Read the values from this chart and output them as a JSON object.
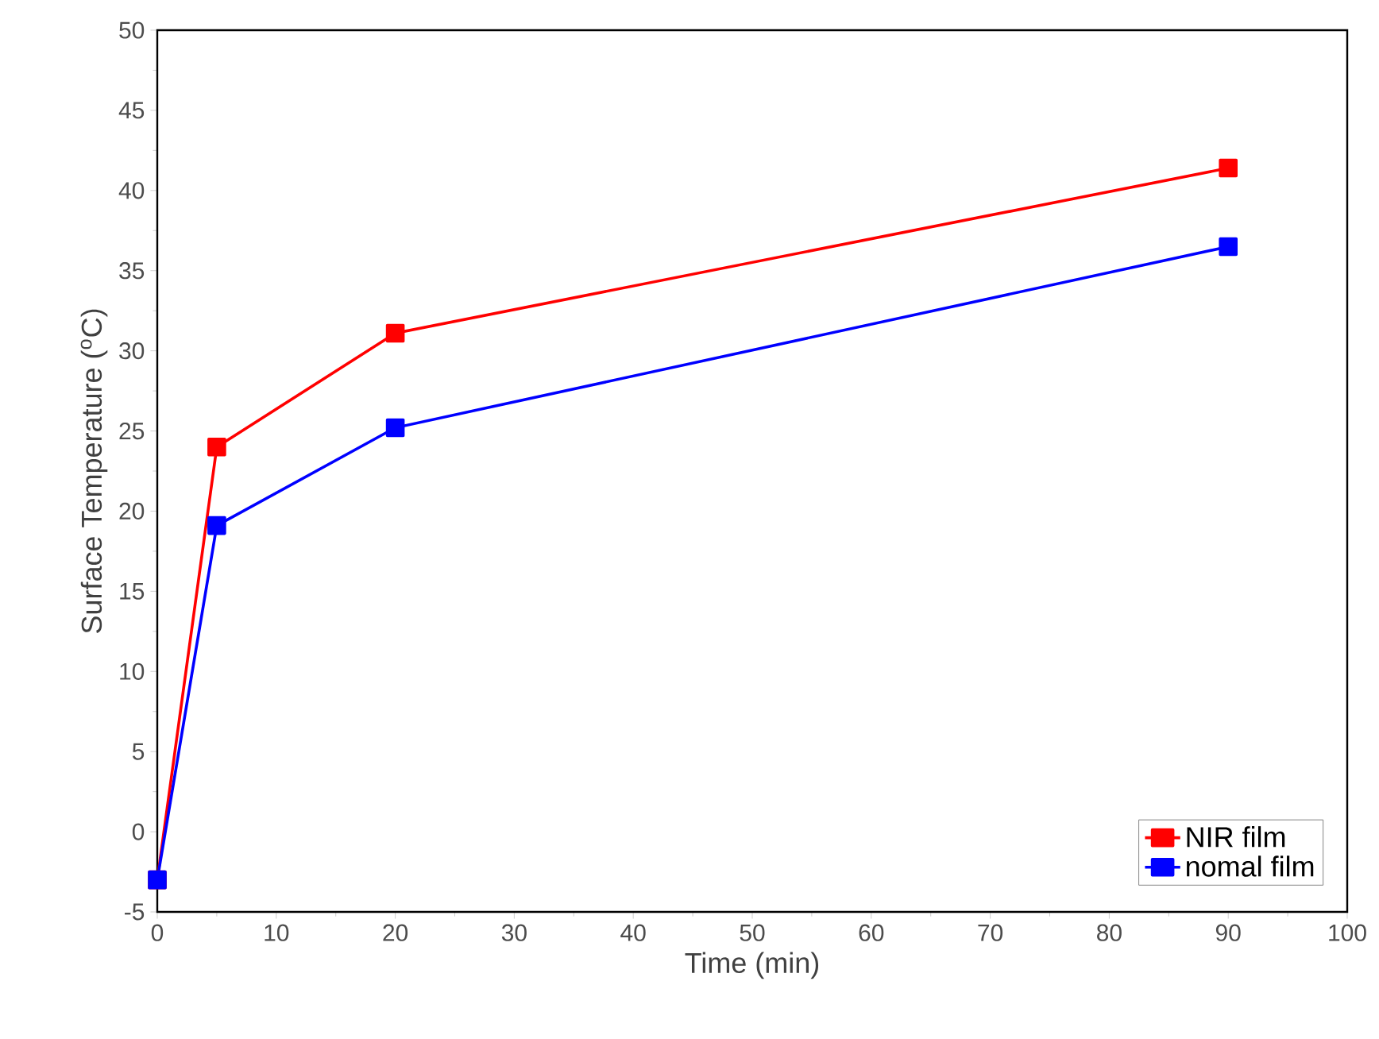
{
  "chart_data": {
    "type": "line",
    "xlabel": "Time (min)",
    "ylabel": "Surface Temperature ($^{o}$C)",
    "x": [
      0,
      5,
      20,
      90
    ],
    "series": [
      {
        "name": "NIR film",
        "color": "#ff0000",
        "values": [
          -3,
          24.0,
          31.1,
          41.4
        ]
      },
      {
        "name": "nomal film",
        "color": "#0000ff",
        "values": [
          -3,
          19.1,
          25.2,
          36.5
        ]
      }
    ],
    "xlim": [
      0,
      100
    ],
    "ylim": [
      -5,
      50
    ],
    "xticks": [
      0,
      10,
      20,
      30,
      40,
      50,
      60,
      70,
      80,
      90,
      100
    ],
    "yticks": [
      -5,
      0,
      5,
      10,
      15,
      20,
      25,
      30,
      35,
      40,
      45,
      50
    ],
    "grid": false,
    "legend": "bottom right",
    "marker": "square",
    "line_style": "solid"
  }
}
